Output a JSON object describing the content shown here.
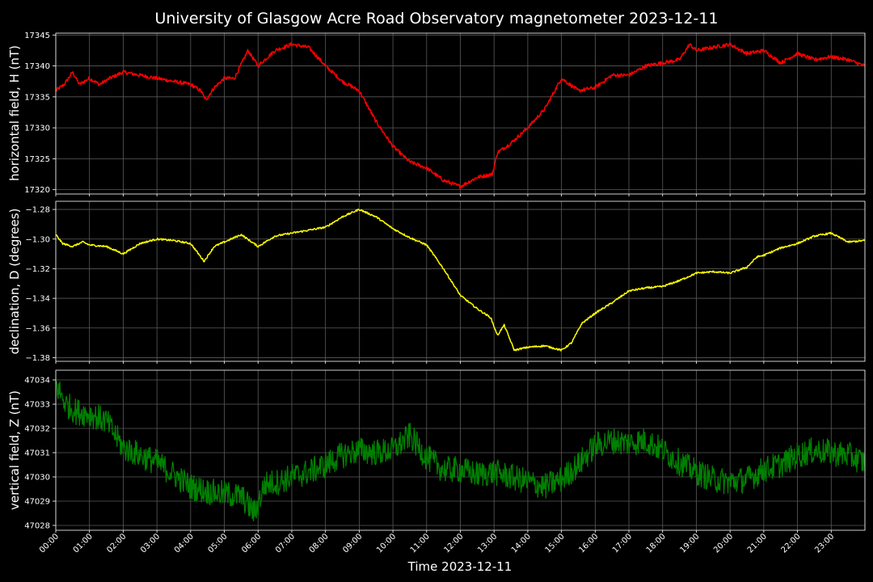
{
  "chart_data": {
    "type": "line",
    "title": "University of Glasgow Acre Road Observatory magnetometer 2023-12-11",
    "xlabel": "Time 2023-12-11",
    "x_ticks": [
      "00:00",
      "01:00",
      "02:00",
      "03:00",
      "04:00",
      "05:00",
      "06:00",
      "07:00",
      "08:00",
      "09:00",
      "10:00",
      "11:00",
      "12:00",
      "13:00",
      "14:00",
      "15:00",
      "16:00",
      "17:00",
      "18:00",
      "19:00",
      "20:00",
      "21:00",
      "22:00",
      "23:00"
    ],
    "xlim_hours": [
      0,
      24
    ],
    "grid": true,
    "panels": [
      {
        "ylabel": "horizontal field, H (nT)",
        "color": "#ff0000",
        "ylim": [
          17319.3,
          17345.3
        ],
        "y_ticks": [
          "17320",
          "17325",
          "17330",
          "17335",
          "17340",
          "17345"
        ],
        "y_tick_values": [
          17320,
          17325,
          17330,
          17335,
          17340,
          17345
        ],
        "noise": 0.3,
        "series": [
          [
            0,
            17336
          ],
          [
            0.25,
            17337
          ],
          [
            0.5,
            17339
          ],
          [
            0.7,
            17337
          ],
          [
            1,
            17338
          ],
          [
            1.3,
            17337
          ],
          [
            1.6,
            17338
          ],
          [
            2,
            17339
          ],
          [
            2.5,
            17338.5
          ],
          [
            3,
            17338
          ],
          [
            3.5,
            17337.5
          ],
          [
            4,
            17337
          ],
          [
            4.3,
            17336
          ],
          [
            4.45,
            17334.5
          ],
          [
            4.7,
            17336.5
          ],
          [
            5,
            17338
          ],
          [
            5.3,
            17338
          ],
          [
            5.7,
            17342.5
          ],
          [
            6,
            17340
          ],
          [
            6.5,
            17342.5
          ],
          [
            7,
            17343.5
          ],
          [
            7.5,
            17343
          ],
          [
            8,
            17340
          ],
          [
            8.5,
            17337.5
          ],
          [
            9,
            17336
          ],
          [
            9.5,
            17331
          ],
          [
            10,
            17327
          ],
          [
            10.5,
            17324.5
          ],
          [
            11,
            17323.5
          ],
          [
            11.5,
            17321.5
          ],
          [
            12,
            17320.5
          ],
          [
            12.5,
            17322
          ],
          [
            12.95,
            17322.5
          ],
          [
            13.1,
            17326
          ],
          [
            13.5,
            17327.5
          ],
          [
            14,
            17330
          ],
          [
            14.5,
            17333
          ],
          [
            15,
            17338
          ],
          [
            15.5,
            17336
          ],
          [
            16,
            17336.5
          ],
          [
            16.5,
            17338.5
          ],
          [
            17,
            17338.5
          ],
          [
            17.5,
            17340
          ],
          [
            18,
            17340.5
          ],
          [
            18.5,
            17341
          ],
          [
            18.8,
            17343.5
          ],
          [
            19,
            17342.5
          ],
          [
            19.5,
            17343
          ],
          [
            20,
            17343.5
          ],
          [
            20.5,
            17342
          ],
          [
            21,
            17342.5
          ],
          [
            21.5,
            17340.5
          ],
          [
            22,
            17342
          ],
          [
            22.5,
            17341
          ],
          [
            23,
            17341.5
          ],
          [
            23.5,
            17341
          ],
          [
            24,
            17340
          ]
        ]
      },
      {
        "ylabel": "declination, D (degrees)",
        "color": "#ffff00",
        "ylim": [
          -1.3825,
          -1.2745
        ],
        "y_ticks": [
          "−1.28",
          "−1.30",
          "−1.32",
          "−1.34",
          "−1.36",
          "−1.38"
        ],
        "y_tick_values": [
          -1.28,
          -1.3,
          -1.32,
          -1.34,
          -1.36,
          -1.38
        ],
        "noise": 0.0006,
        "series": [
          [
            0,
            -1.297
          ],
          [
            0.2,
            -1.303
          ],
          [
            0.5,
            -1.305
          ],
          [
            0.8,
            -1.302
          ],
          [
            1,
            -1.304
          ],
          [
            1.5,
            -1.305
          ],
          [
            2,
            -1.31
          ],
          [
            2.5,
            -1.303
          ],
          [
            3,
            -1.3
          ],
          [
            3.5,
            -1.301
          ],
          [
            4,
            -1.303
          ],
          [
            4.4,
            -1.315
          ],
          [
            4.7,
            -1.305
          ],
          [
            5,
            -1.302
          ],
          [
            5.5,
            -1.297
          ],
          [
            6,
            -1.305
          ],
          [
            6.5,
            -1.298
          ],
          [
            7,
            -1.296
          ],
          [
            7.5,
            -1.294
          ],
          [
            8,
            -1.292
          ],
          [
            8.5,
            -1.285
          ],
          [
            9,
            -1.28
          ],
          [
            9.5,
            -1.285
          ],
          [
            10,
            -1.293
          ],
          [
            10.5,
            -1.299
          ],
          [
            11,
            -1.304
          ],
          [
            11.5,
            -1.32
          ],
          [
            12,
            -1.338
          ],
          [
            12.5,
            -1.347
          ],
          [
            12.9,
            -1.353
          ],
          [
            13.1,
            -1.365
          ],
          [
            13.3,
            -1.358
          ],
          [
            13.6,
            -1.375
          ],
          [
            14,
            -1.373
          ],
          [
            14.5,
            -1.372
          ],
          [
            15,
            -1.375
          ],
          [
            15.3,
            -1.37
          ],
          [
            15.6,
            -1.357
          ],
          [
            16,
            -1.35
          ],
          [
            16.5,
            -1.343
          ],
          [
            17,
            -1.335
          ],
          [
            17.5,
            -1.333
          ],
          [
            18,
            -1.332
          ],
          [
            18.5,
            -1.328
          ],
          [
            19,
            -1.323
          ],
          [
            19.5,
            -1.322
          ],
          [
            20,
            -1.323
          ],
          [
            20.5,
            -1.319
          ],
          [
            20.8,
            -1.312
          ],
          [
            21,
            -1.311
          ],
          [
            21.5,
            -1.306
          ],
          [
            22,
            -1.303
          ],
          [
            22.5,
            -1.298
          ],
          [
            23,
            -1.296
          ],
          [
            23.5,
            -1.302
          ],
          [
            24,
            -1.301
          ]
        ]
      },
      {
        "ylabel": "vertical field, Z (nT)",
        "color": "#008000",
        "ylim": [
          47027.8,
          47034.4
        ],
        "y_ticks": [
          "47028",
          "47029",
          "47030",
          "47031",
          "47032",
          "47033",
          "47034"
        ],
        "y_tick_values": [
          47028,
          47029,
          47030,
          47031,
          47032,
          47033,
          47034
        ],
        "noise": 0.55,
        "series": [
          [
            0,
            47033.8
          ],
          [
            0.3,
            47033
          ],
          [
            0.6,
            47032.7
          ],
          [
            1,
            47032.6
          ],
          [
            1.5,
            47032.3
          ],
          [
            2,
            47031.2
          ],
          [
            2.5,
            47030.9
          ],
          [
            3,
            47030.6
          ],
          [
            3.5,
            47030.1
          ],
          [
            4,
            47029.6
          ],
          [
            4.5,
            47029.4
          ],
          [
            5,
            47029.3
          ],
          [
            5.5,
            47029.2
          ],
          [
            5.9,
            47028.5
          ],
          [
            6.2,
            47029.7
          ],
          [
            6.6,
            47029.8
          ],
          [
            7,
            47030
          ],
          [
            7.5,
            47030.2
          ],
          [
            8,
            47030.5
          ],
          [
            8.5,
            47030.9
          ],
          [
            9,
            47031.1
          ],
          [
            9.5,
            47031
          ],
          [
            10,
            47031.1
          ],
          [
            10.5,
            47031.7
          ],
          [
            11,
            47030.8
          ],
          [
            11.5,
            47030.3
          ],
          [
            12,
            47030.3
          ],
          [
            12.5,
            47030.1
          ],
          [
            13,
            47030.2
          ],
          [
            13.5,
            47030
          ],
          [
            14,
            47029.8
          ],
          [
            14.5,
            47029.6
          ],
          [
            15,
            47029.9
          ],
          [
            15.5,
            47030.5
          ],
          [
            16,
            47031.3
          ],
          [
            16.5,
            47031.5
          ],
          [
            17,
            47031.4
          ],
          [
            17.5,
            47031.5
          ],
          [
            18,
            47031.1
          ],
          [
            18.5,
            47030.6
          ],
          [
            19,
            47030.2
          ],
          [
            19.5,
            47029.9
          ],
          [
            20,
            47029.8
          ],
          [
            20.5,
            47029.9
          ],
          [
            21,
            47030.3
          ],
          [
            21.5,
            47030.5
          ],
          [
            22,
            47030.9
          ],
          [
            22.5,
            47031.1
          ],
          [
            23,
            47031
          ],
          [
            23.5,
            47030.9
          ],
          [
            24,
            47030.6
          ]
        ]
      }
    ]
  }
}
